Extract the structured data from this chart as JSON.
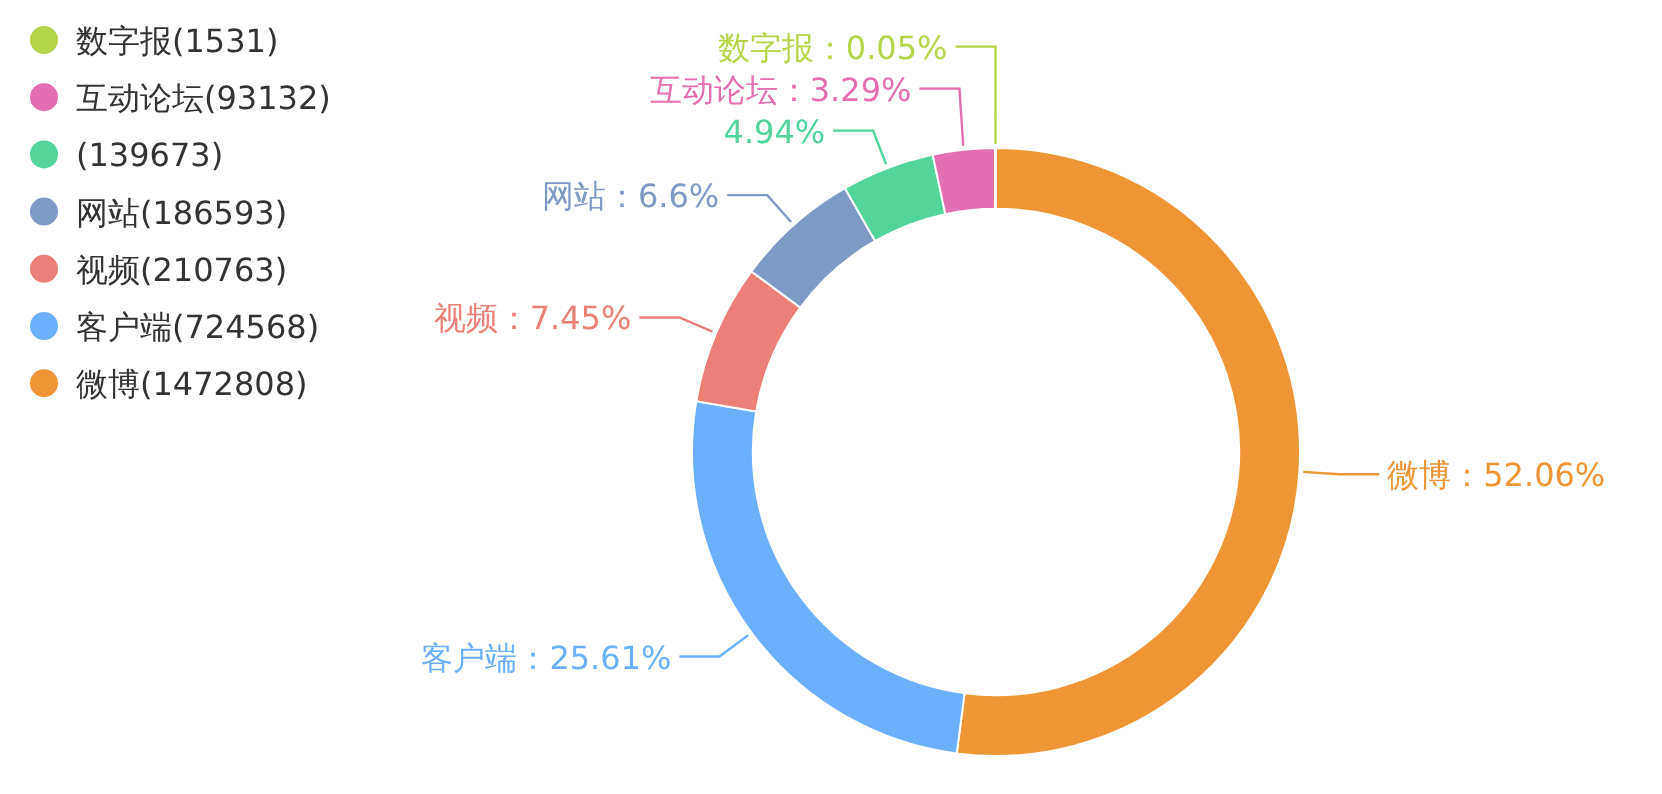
{
  "chart_data": {
    "type": "donut",
    "legend": "top left",
    "categories": [
      "数字报(1531)",
      "互动论坛(93132)",
      "(139673)",
      "网站(186593)",
      "视频(210763)",
      "客户端(724568)",
      "微博(1472808)"
    ],
    "values": [
      0.05,
      3.29,
      4.94,
      6.6,
      7.45,
      25.61,
      52.06
    ],
    "colors": [
      "#b5d64a",
      "#e36fb0",
      "#52d49b",
      "#7f9ac7",
      "#eb8079",
      "#6cb0fc",
      "#ee9535"
    ],
    "value_labels": [
      "数字报：0.05%",
      "互动论坛：3.29%",
      "4.94%",
      "网站：6.6%",
      "视频：7.45%",
      "客户端：25.61%",
      "微博：52.06%"
    ]
  }
}
